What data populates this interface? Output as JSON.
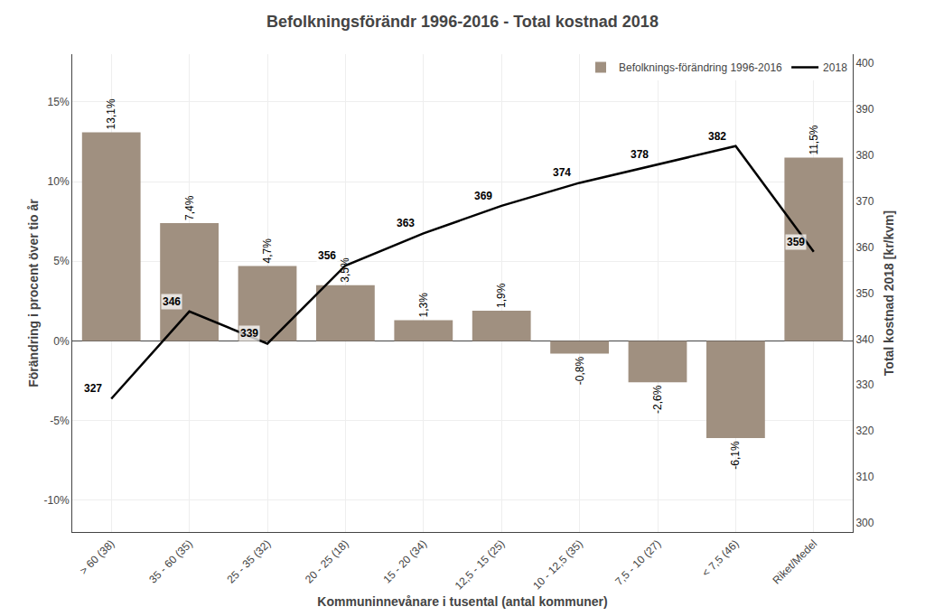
{
  "chart_data": {
    "type": "bar",
    "title": "Befolkningsförändr 1996-2016 - Total kostnad 2018",
    "categories": [
      "> 60 (38)",
      "35 - 60 (35)",
      "25 - 35 (32)",
      "20 - 25 (18)",
      "15 - 20 (34)",
      "12,5 - 15 (25)",
      "10 - 12,5 (35)",
      "7,5 - 10 (27)",
      "< 7,5 (46)",
      "Riket/Medel"
    ],
    "xlabel": "Kommuninnevånare i tusental (antal kommuner)",
    "ylabel": "Förändring i procent över tio år",
    "y2label": "Total kostnad 2018 [kr/kvm]",
    "ylim": [
      -12,
      18
    ],
    "yticks": [
      {
        "value": -10,
        "label": "-10%"
      },
      {
        "value": -5,
        "label": "-5%"
      },
      {
        "value": 0,
        "label": "0%"
      },
      {
        "value": 5,
        "label": "5%"
      },
      {
        "value": 10,
        "label": "10%"
      },
      {
        "value": 15,
        "label": "15%"
      }
    ],
    "y2lim": [
      298,
      402
    ],
    "y2ticks": [
      300,
      310,
      320,
      330,
      340,
      350,
      360,
      370,
      380,
      390,
      400
    ],
    "grid": true,
    "legend": "upper right",
    "series": [
      {
        "name": "Befolknings-förändring 1996-2016",
        "type": "bar",
        "color": "#a09080",
        "values": [
          13.1,
          7.4,
          4.7,
          3.5,
          1.3,
          1.9,
          -0.8,
          -2.6,
          -6.1,
          11.5
        ],
        "value_labels": [
          "13,1%",
          "7,4%",
          "4,7%",
          "3,5%",
          "1,3%",
          "1,9%",
          "-0,8%",
          "-2,6%",
          "-6,1%",
          "11,5%"
        ],
        "data_labels": true
      },
      {
        "name": "2018",
        "type": "line",
        "color": "#000000",
        "axis": "y2",
        "line_style": "solid",
        "values": [
          327,
          346,
          339,
          356,
          363,
          369,
          374,
          378,
          382,
          359
        ],
        "data_labels": true
      }
    ]
  }
}
